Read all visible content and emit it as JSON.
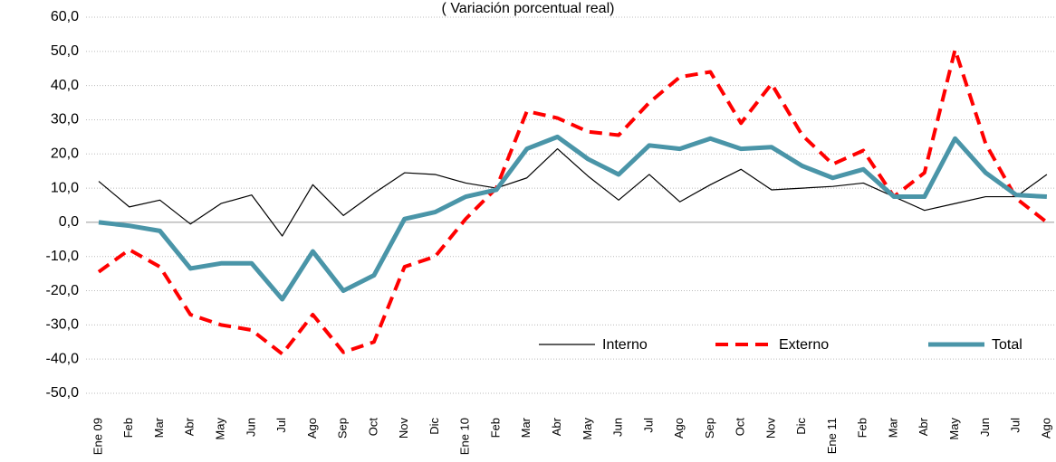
{
  "chart_data": {
    "type": "line",
    "title": "( Variación porcentual real)",
    "categories": [
      "Ene 09",
      "Feb",
      "Mar",
      "Abr",
      "May",
      "Jun",
      "Jul",
      "Ago",
      "Sep",
      "Oct",
      "Nov",
      "Dic",
      "Ene 10",
      "Feb",
      "Mar",
      "Abr",
      "May",
      "Jun",
      "Jul",
      "Ago",
      "Sep",
      "Oct",
      "Nov",
      "Dic",
      "Ene 11",
      "Feb",
      "Mar",
      "Abr",
      "May",
      "Jun",
      "Jul",
      "Ago"
    ],
    "series": [
      {
        "name": "Interno",
        "color": "#000000",
        "width": 1.2,
        "dash": false,
        "values": [
          12,
          4.5,
          6.5,
          -0.5,
          5.5,
          8,
          -4,
          11,
          2,
          8.5,
          14.5,
          14,
          11.5,
          10,
          13,
          21.5,
          13.5,
          6.5,
          14,
          6,
          11,
          15.5,
          9.5,
          10,
          10.5,
          11.5,
          7.5,
          3.5,
          5.5,
          7.5,
          7.5,
          14
        ]
      },
      {
        "name": "Externo",
        "color": "#ff0000",
        "width": 4,
        "dash": true,
        "values": [
          -14.5,
          -8,
          -13,
          -27,
          -30,
          -31.5,
          -38.5,
          -27,
          -38,
          -35,
          -13,
          -10,
          1,
          10,
          32.5,
          30.5,
          26.5,
          25.5,
          35,
          42.5,
          44,
          29,
          40.5,
          25.5,
          17,
          21,
          7.5,
          14.5,
          50.5,
          23,
          7,
          0
        ]
      },
      {
        "name": "Total",
        "color": "#4a95a8",
        "width": 5,
        "dash": false,
        "values": [
          0,
          -1,
          -2.5,
          -13.5,
          -12,
          -12,
          -22.5,
          -8.5,
          -20,
          -15.5,
          1,
          3,
          7.5,
          9.5,
          21.5,
          25,
          18.5,
          14,
          22.5,
          21.5,
          24.5,
          21.5,
          22,
          16.5,
          13,
          15.5,
          7.5,
          7.5,
          24.5,
          14.5,
          8,
          7.5
        ]
      }
    ],
    "ylim": [
      -50,
      60
    ],
    "yticks": [
      {
        "value": 60,
        "label": "60,0"
      },
      {
        "value": 50,
        "label": "50,0"
      },
      {
        "value": 40,
        "label": "40,0"
      },
      {
        "value": 30,
        "label": "30,0"
      },
      {
        "value": 20,
        "label": "20,0"
      },
      {
        "value": 10,
        "label": "10,0"
      },
      {
        "value": 0,
        "label": "0,0"
      },
      {
        "value": -10,
        "label": "-10,0"
      },
      {
        "value": -20,
        "label": "-20,0"
      },
      {
        "value": -30,
        "label": "-30,0"
      },
      {
        "value": -40,
        "label": "-40,0"
      },
      {
        "value": -50,
        "label": "-50,0"
      }
    ],
    "grid": true,
    "legend": "bottom-right"
  }
}
